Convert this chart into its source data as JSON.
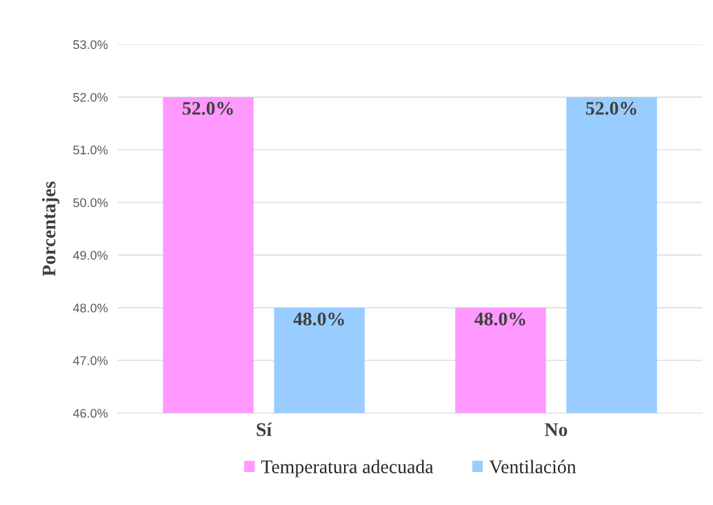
{
  "chart_data": {
    "type": "bar",
    "ylabel": "Porcentajes",
    "categories": [
      "Sí",
      "No"
    ],
    "series": [
      {
        "name": "Temperatura adecuada",
        "color": "#ff99ff",
        "values": [
          52.0,
          48.0
        ],
        "value_labels": [
          "52.0%",
          "48.0%"
        ]
      },
      {
        "name": "Ventilación",
        "color": "#99ccff",
        "values": [
          48.0,
          52.0
        ],
        "value_labels": [
          "48.0%",
          "52.0%"
        ]
      }
    ],
    "ylim": [
      46,
      53
    ],
    "yticks": [
      {
        "value": 46,
        "label": "46.0%"
      },
      {
        "value": 47,
        "label": "47.0%"
      },
      {
        "value": 48,
        "label": "48.0%"
      },
      {
        "value": 49,
        "label": "49.0%"
      },
      {
        "value": 50,
        "label": "50.0%"
      },
      {
        "value": 51,
        "label": "51.0%"
      },
      {
        "value": 52,
        "label": "52.0%"
      },
      {
        "value": 53,
        "label": "53.0%"
      }
    ],
    "grid": "y",
    "legend": "bottom"
  }
}
